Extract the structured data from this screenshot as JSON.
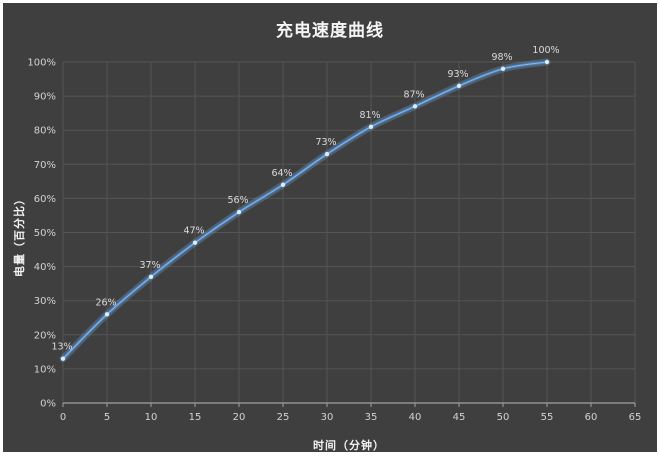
{
  "chart_data": {
    "type": "line",
    "title": "充电速度曲线",
    "xlabel": "时间（分钟）",
    "ylabel": "电量（百分比）",
    "x": [
      0,
      5,
      10,
      15,
      20,
      25,
      30,
      35,
      40,
      45,
      50,
      55
    ],
    "values": [
      13,
      26,
      37,
      47,
      56,
      64,
      73,
      81,
      87,
      93,
      98,
      100
    ],
    "point_labels": [
      "13%",
      "26%",
      "37%",
      "47%",
      "56%",
      "64%",
      "73%",
      "81%",
      "87%",
      "93%",
      "98%",
      "100%"
    ],
    "xlim": [
      0,
      65
    ],
    "ylim": [
      0,
      100
    ],
    "x_ticks": [
      0,
      5,
      10,
      15,
      20,
      25,
      30,
      35,
      40,
      45,
      50,
      55,
      60,
      65
    ],
    "y_ticks": [
      0,
      10,
      20,
      30,
      40,
      50,
      60,
      70,
      80,
      90,
      100
    ],
    "y_tick_labels": [
      "0%",
      "10%",
      "20%",
      "30%",
      "40%",
      "50%",
      "60%",
      "70%",
      "80%",
      "90%",
      "100%"
    ],
    "grid": true,
    "legend": "none",
    "smooth": true
  },
  "style": {
    "panel_background": "#3f3f3f",
    "page_background": "#ffffff",
    "grid_color": "#555555",
    "axis_color": "#a0a0a0",
    "tick_text_color": "#d2d2d2",
    "data_label_color": "#dbdbdb",
    "title_color": "#f5f5f5",
    "line_color": "#4a82c2",
    "line_inner_color": "#94c2ec",
    "glow_color": "#7fb3e8",
    "marker_color": "#d9edfc"
  }
}
